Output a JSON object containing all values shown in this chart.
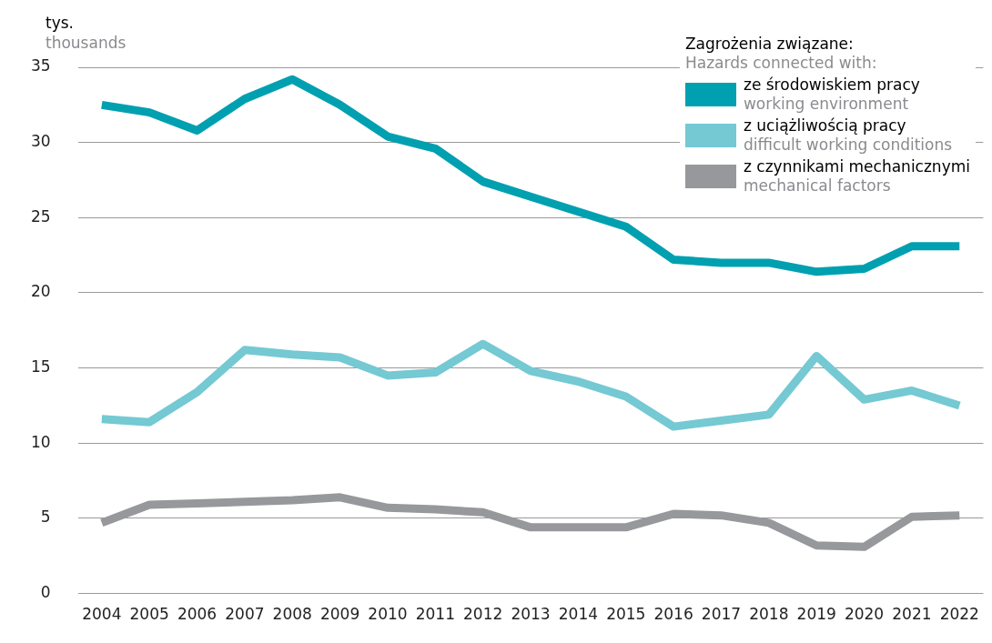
{
  "chart_data": {
    "type": "line",
    "ylabel": "tys.\nthousands",
    "legend_title": "Zagrożenia związane:\nHazards connected with:",
    "categories": [
      "2004",
      "2005",
      "2006",
      "2007",
      "2008",
      "2009",
      "2010",
      "2011",
      "2012",
      "2013",
      "2014",
      "2015",
      "2016",
      "2017",
      "2018",
      "2019",
      "2020",
      "2021",
      "2022"
    ],
    "series": [
      {
        "name": "ze środowiskiem pracy\nworking environment",
        "color": "#00a0b0",
        "values": [
          32.5,
          32.0,
          30.8,
          32.9,
          34.2,
          32.5,
          30.4,
          29.6,
          27.4,
          26.4,
          25.4,
          24.4,
          22.2,
          22.0,
          22.0,
          21.4,
          21.6,
          23.1,
          23.1
        ]
      },
      {
        "name": "z uciążliwością pracy\ndifficult working conditions",
        "color": "#74c9d3",
        "values": [
          11.6,
          11.4,
          13.4,
          16.2,
          15.9,
          15.7,
          14.5,
          14.7,
          16.6,
          14.8,
          14.1,
          13.1,
          11.1,
          11.5,
          11.9,
          15.8,
          12.9,
          13.5,
          12.5
        ]
      },
      {
        "name": "z czynnikami mechanicznymi\nmechanical factors",
        "color": "#97989c",
        "values": [
          4.7,
          5.9,
          6.0,
          6.1,
          6.2,
          6.4,
          5.7,
          5.6,
          5.4,
          4.4,
          4.4,
          4.4,
          5.3,
          5.2,
          4.7,
          3.2,
          3.1,
          5.1,
          5.2
        ]
      }
    ],
    "ylim": [
      0,
      35
    ],
    "yticks": [
      0,
      5,
      10,
      15,
      20,
      25,
      30,
      35
    ],
    "grid": "y",
    "legend": "top right",
    "marker": "none",
    "line_style": "solid"
  }
}
